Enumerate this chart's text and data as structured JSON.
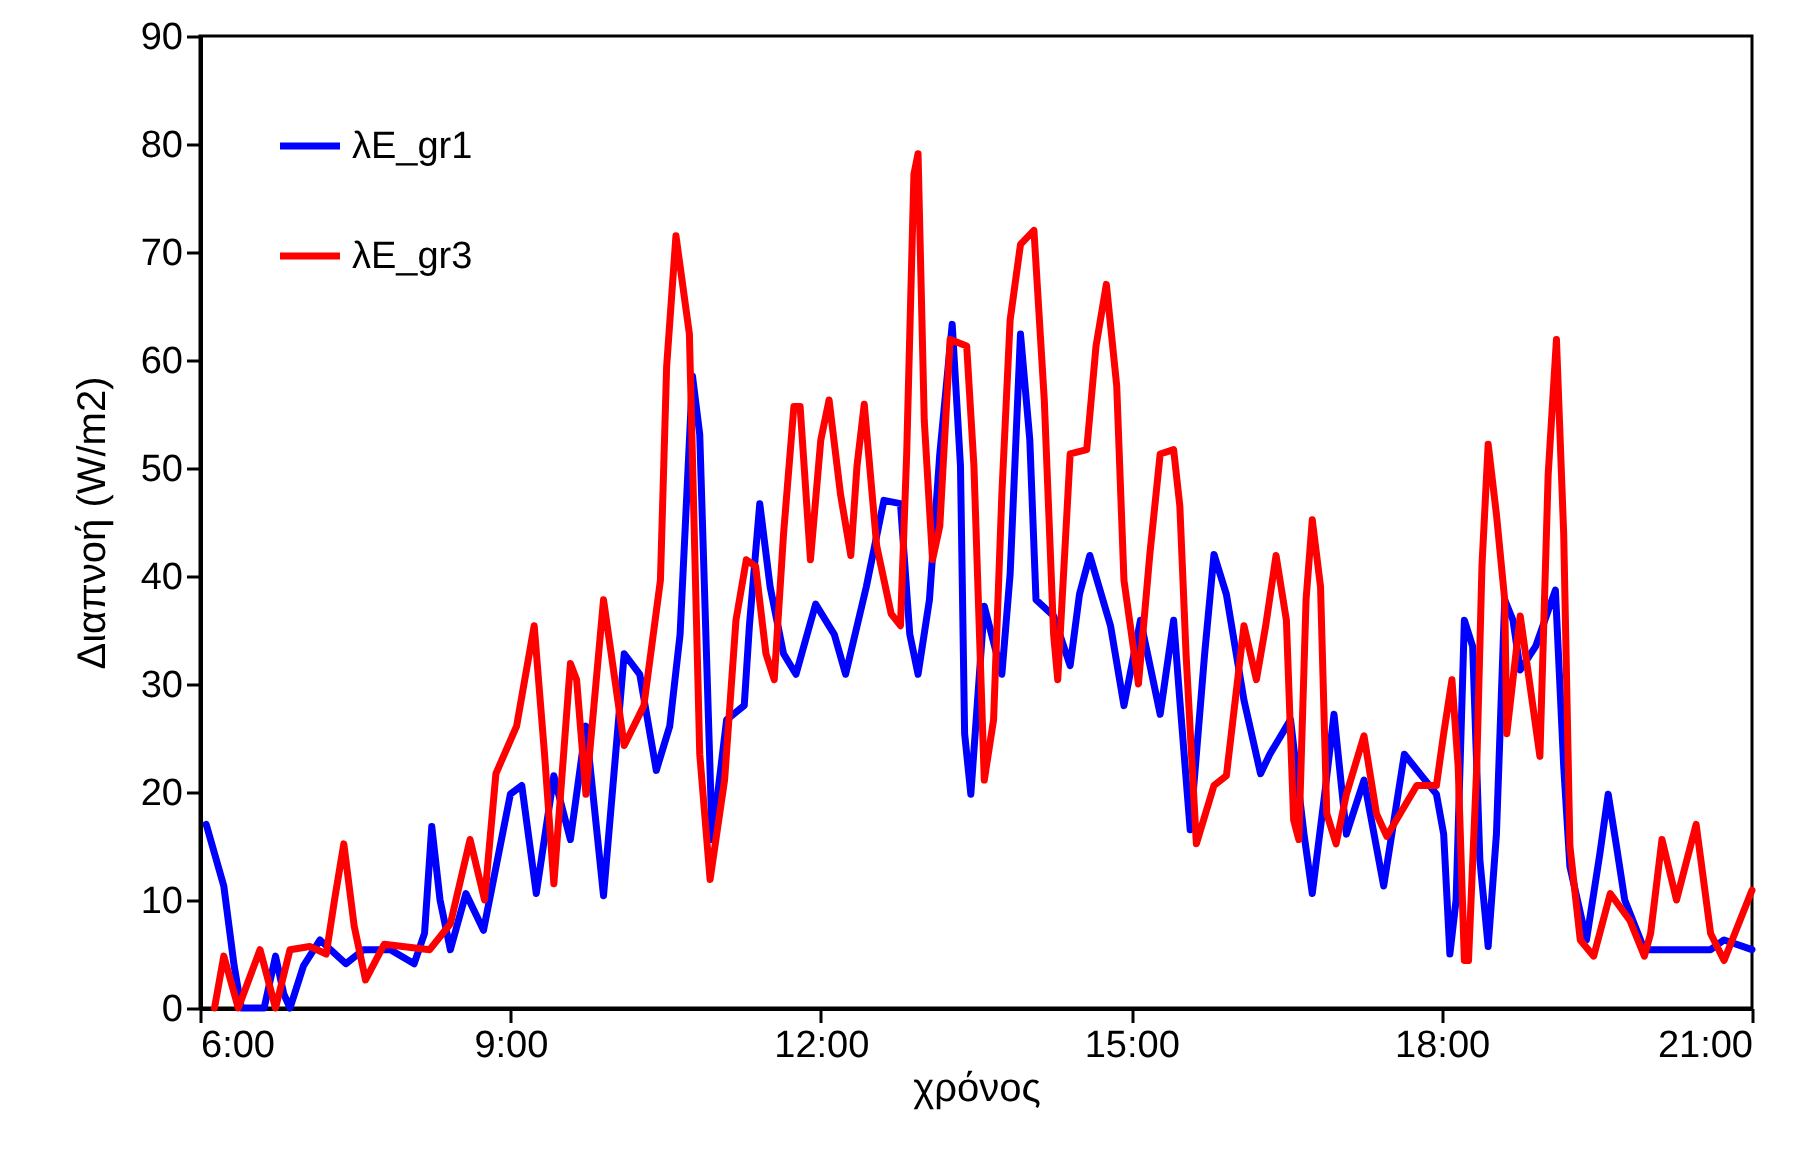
{
  "chart_data": {
    "type": "line",
    "xlabel": "χρόνος",
    "ylabel": "Διαπνοή (W/m2)",
    "xlim": [
      6,
      21
    ],
    "xticks": [
      {
        "value": 6,
        "label": "6:00"
      },
      {
        "value": 9,
        "label": "9:00"
      },
      {
        "value": 12,
        "label": "12:00"
      },
      {
        "value": 15,
        "label": "15:00"
      },
      {
        "value": 18,
        "label": "18:00"
      },
      {
        "value": 21,
        "label": "21:00"
      }
    ],
    "ylim": [
      0,
      90
    ],
    "yticks": [
      0,
      10,
      20,
      30,
      40,
      50,
      60,
      70,
      80,
      90
    ],
    "legend": "top left",
    "line_style": "solid",
    "series": [
      {
        "name": "λE_gr1",
        "color": "#0000ff",
        "x": [
          6.06,
          6.23,
          6.33,
          6.4,
          6.62,
          6.73,
          6.81,
          6.87,
          7.0,
          7.16,
          7.41,
          7.58,
          7.84,
          8.07,
          8.17,
          8.24,
          8.32,
          8.42,
          8.57,
          8.74,
          9.0,
          9.11,
          9.25,
          9.42,
          9.58,
          9.73,
          9.9,
          10.1,
          10.25,
          10.41,
          10.54,
          10.64,
          10.76,
          10.83,
          10.95,
          11.09,
          11.26,
          11.31,
          11.41,
          11.51,
          11.64,
          11.76,
          11.95,
          12.13,
          12.24,
          12.44,
          12.61,
          12.77,
          12.86,
          12.94,
          13.05,
          13.15,
          13.27,
          13.35,
          13.39,
          13.45,
          13.58,
          13.75,
          13.83,
          13.93,
          14.02,
          14.08,
          14.25,
          14.41,
          14.5,
          14.6,
          14.8,
          14.93,
          15.09,
          15.28,
          15.41,
          15.47,
          15.57,
          15.71,
          15.8,
          15.92,
          16.09,
          16.25,
          16.34,
          16.54,
          16.67,
          16.75,
          16.87,
          16.96,
          17.08,
          17.25,
          17.44,
          17.64,
          17.79,
          17.95,
          18.02,
          18.08,
          18.14,
          18.22,
          18.3,
          18.37,
          18.45,
          18.53,
          18.61,
          18.69,
          18.76,
          18.91,
          19.1,
          19.18,
          19.24,
          19.4,
          19.53,
          19.61,
          19.69,
          19.77,
          19.96,
          20.6,
          20.73,
          21.0
        ],
        "values": [
          17.0,
          11.3,
          3.9,
          0,
          0,
          4.8,
          1.3,
          0,
          3.9,
          6.3,
          4.1,
          5.4,
          5.4,
          4.1,
          6.9,
          16.8,
          10,
          5.4,
          10.6,
          7.2,
          19.8,
          20.6,
          10.6,
          21.5,
          15.6,
          26.1,
          10.4,
          32.8,
          30.9,
          22,
          26.1,
          34.6,
          58.5,
          53.1,
          15.6,
          26.7,
          28,
          35.4,
          46.7,
          39,
          32.8,
          30.9,
          37.4,
          34.6,
          30.9,
          39,
          47,
          46.7,
          34.6,
          30.9,
          37.8,
          51.3,
          63.3,
          50.2,
          25.4,
          19.8,
          37.2,
          30.9,
          40.2,
          62.4,
          52.6,
          37.8,
          36.3,
          31.7,
          38.3,
          41.9,
          35.4,
          28,
          35.9,
          27.2,
          35.9,
          28.5,
          16.5,
          32.8,
          42,
          38.3,
          28.5,
          21.7,
          23.5,
          26.7,
          16.1,
          10.6,
          19.8,
          27.2,
          16.1,
          21.1,
          11.3,
          23.5,
          21.7,
          19.8,
          16.1,
          5,
          10,
          35.9,
          33.5,
          13.7,
          5.7,
          16.1,
          37.8,
          35.9,
          31.3,
          33.5,
          38.7,
          22.4,
          13.1,
          6.3,
          14.3,
          19.8,
          15,
          10,
          5.4,
          5.4,
          6.3,
          5.4
        ]
      },
      {
        "name": "λE_gr3",
        "color": "#ff0000",
        "x": [
          6.14,
          6.23,
          6.37,
          6.58,
          6.73,
          6.87,
          7.06,
          7.22,
          7.3,
          7.39,
          7.49,
          7.6,
          7.78,
          8.22,
          8.42,
          8.61,
          8.75,
          8.86,
          9.06,
          9.23,
          9.33,
          9.42,
          9.58,
          9.64,
          9.73,
          9.9,
          10.1,
          10.29,
          10.45,
          10.51,
          10.6,
          10.73,
          10.83,
          10.93,
          11.07,
          11.18,
          11.28,
          11.37,
          11.47,
          11.55,
          11.64,
          11.74,
          11.8,
          11.9,
          12.0,
          12.08,
          12.19,
          12.29,
          12.35,
          12.42,
          12.54,
          12.68,
          12.77,
          12.83,
          12.9,
          12.94,
          13.0,
          13.08,
          13.15,
          13.25,
          13.41,
          13.48,
          13.58,
          13.67,
          13.75,
          13.83,
          13.93,
          14.06,
          14.16,
          14.25,
          14.29,
          14.41,
          14.57,
          14.66,
          14.76,
          14.86,
          14.93,
          15.07,
          15.18,
          15.28,
          15.41,
          15.47,
          15.53,
          15.63,
          15.8,
          15.92,
          16.09,
          16.21,
          16.3,
          16.4,
          16.5,
          16.57,
          16.62,
          16.69,
          16.75,
          16.83,
          16.89,
          16.98,
          17.08,
          17.25,
          17.37,
          17.47,
          17.76,
          17.95,
          18.02,
          18.1,
          18.16,
          18.22,
          18.26,
          18.34,
          18.39,
          18.45,
          18.53,
          18.61,
          18.63,
          18.76,
          18.95,
          19.03,
          19.11,
          19.18,
          19.24,
          19.34,
          19.47,
          19.63,
          19.82,
          19.96,
          20.02,
          20.13,
          20.27,
          20.46,
          20.6,
          20.73,
          21.0
        ],
        "values": [
          0,
          4.8,
          0,
          5.4,
          0,
          5.4,
          5.7,
          5,
          10,
          15.2,
          7.6,
          2.6,
          5.9,
          5.4,
          7.8,
          15.6,
          10,
          21.7,
          26.1,
          35.4,
          23.5,
          11.5,
          31.9,
          30.4,
          19.8,
          37.8,
          24.3,
          28,
          39.6,
          59.4,
          71.5,
          62.4,
          23.5,
          11.9,
          21.1,
          35.9,
          41.5,
          40.9,
          32.8,
          30.4,
          43.9,
          55.7,
          55.7,
          41.5,
          52.6,
          56.3,
          47.6,
          41.9,
          50.2,
          55.9,
          42.8,
          36.5,
          35.4,
          51.3,
          77.2,
          79.1,
          54.4,
          41.5,
          44.6,
          61.9,
          61.3,
          50.2,
          21.1,
          26.7,
          47.6,
          63.7,
          70.7,
          72,
          56.3,
          34.6,
          30.4,
          51.3,
          51.7,
          61.3,
          67,
          57.6,
          39.6,
          30,
          42,
          51.3,
          51.7,
          46.5,
          32.8,
          15.2,
          20.6,
          21.5,
          35.4,
          30.4,
          35.4,
          41.9,
          35.9,
          17.4,
          15.6,
          37.8,
          45.2,
          39,
          18,
          15.2,
          19.8,
          25.2,
          18,
          15.9,
          20.6,
          20.6,
          25.4,
          30.4,
          22.4,
          4.4,
          4.4,
          22.4,
          40.9,
          52.2,
          45.7,
          37.8,
          25.4,
          36.3,
          23.3,
          49.4,
          61.9,
          43.9,
          15,
          6.3,
          4.8,
          10.6,
          8.1,
          4.8,
          6.9,
          15.6,
          10,
          17,
          6.9,
          4.4,
          10.9
        ]
      }
    ]
  }
}
